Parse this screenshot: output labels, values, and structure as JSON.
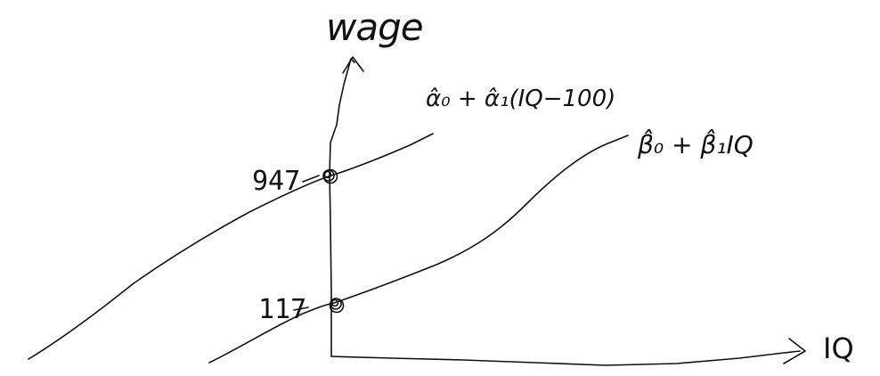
{
  "axes": {
    "y_label": "wage",
    "x_label": "IQ"
  },
  "lines": {
    "upper_equation": "α̂₀ + α̂₁(IQ−100)",
    "lower_equation": "β̂₀ + β̂₁IQ"
  },
  "intercepts": {
    "upper_value": "947",
    "lower_value": "117"
  },
  "colors": {
    "ink": "#111111",
    "background": "#ffffff"
  }
}
